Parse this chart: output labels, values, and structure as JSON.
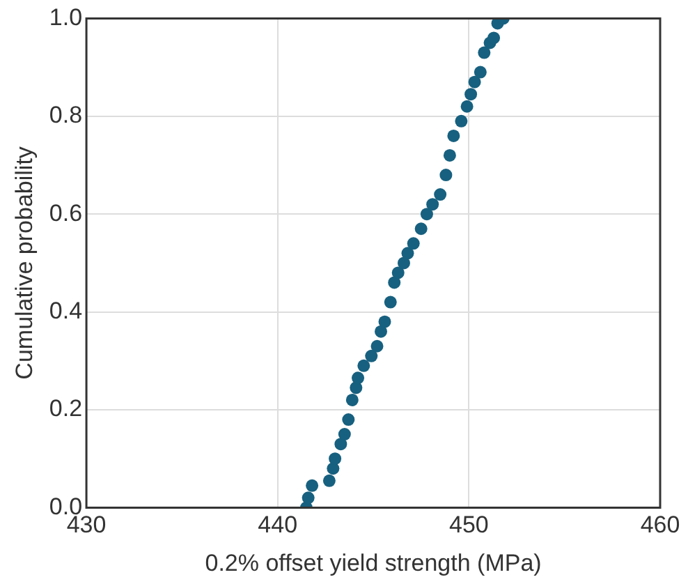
{
  "chart_data": {
    "type": "scatter",
    "xlabel": "0.2% offset yield strength (MPa)",
    "ylabel": "Cumulative probability",
    "series": [
      {
        "color": "#17607f",
        "x": [
          441.5,
          441.6,
          441.8,
          442.7,
          442.9,
          443.0,
          443.3,
          443.5,
          443.7,
          443.9,
          444.1,
          444.2,
          444.5,
          444.9,
          445.2,
          445.4,
          445.6,
          445.9,
          446.1,
          446.3,
          446.6,
          446.8,
          447.1,
          447.5,
          447.8,
          448.1,
          448.5,
          448.8,
          449.0,
          449.2,
          449.6,
          449.9,
          450.1,
          450.3,
          450.6,
          450.8,
          451.1,
          451.3,
          451.5,
          451.8
        ],
        "values": [
          0.0,
          0.02,
          0.045,
          0.055,
          0.08,
          0.1,
          0.13,
          0.15,
          0.18,
          0.22,
          0.245,
          0.265,
          0.29,
          0.31,
          0.33,
          0.36,
          0.38,
          0.42,
          0.46,
          0.48,
          0.5,
          0.52,
          0.54,
          0.57,
          0.6,
          0.62,
          0.64,
          0.68,
          0.72,
          0.76,
          0.79,
          0.82,
          0.845,
          0.87,
          0.89,
          0.93,
          0.95,
          0.96,
          0.99,
          1.0
        ]
      }
    ],
    "xlim": [
      430,
      460
    ],
    "xticks": [
      430,
      440,
      450,
      460
    ],
    "ylim": [
      0,
      1
    ],
    "yticks": [
      {
        "value": 0,
        "label": "0.0"
      },
      {
        "value": 0.2,
        "label": "0.2"
      },
      {
        "value": 0.4,
        "label": "0.4"
      },
      {
        "value": 0.6,
        "label": "0.6"
      },
      {
        "value": 0.8,
        "label": "0.8"
      },
      {
        "value": 1,
        "label": "1.0"
      }
    ],
    "grid": true,
    "legend": false,
    "marker": "circle"
  }
}
